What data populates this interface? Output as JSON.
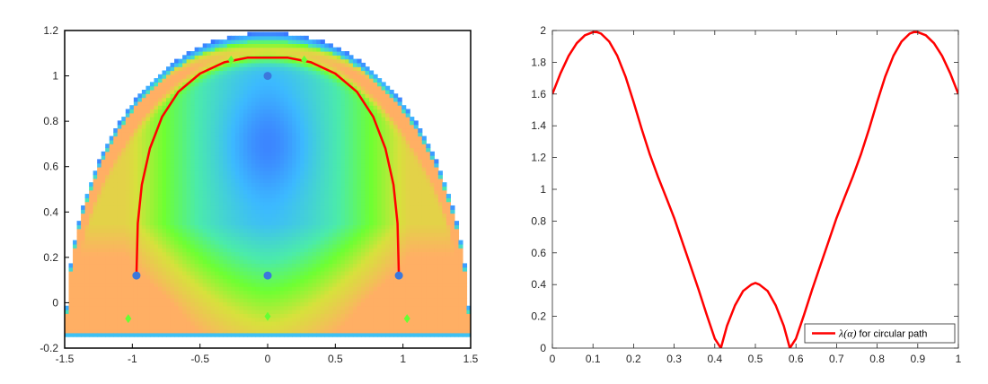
{
  "chart_data": [
    {
      "type": "heatmap",
      "title": "",
      "xlabel": "",
      "ylabel": "",
      "xlim": [
        -1.5,
        1.5
      ],
      "ylim": [
        -0.2,
        1.2
      ],
      "xticks": [
        "-1.5",
        "-1",
        "-0.5",
        "0",
        "0.5",
        "1",
        "1.5"
      ],
      "yticks": [
        "-0.2",
        "0",
        "0.2",
        "0.4",
        "0.6",
        "0.8",
        "1",
        "1.2"
      ],
      "grid": false,
      "colors": {
        "low": "#1e32ff",
        "mid_low": "#3cb4ff",
        "mid": "#66ff33",
        "high": "#ffb464",
        "path": "#ff0000",
        "points": "#3c78dc",
        "diamonds": "#66ff33"
      },
      "path": {
        "type": "line",
        "x": [
          -0.97,
          -0.96,
          -0.93,
          -0.87,
          -0.78,
          -0.66,
          -0.5,
          -0.32,
          -0.15,
          0.0,
          0.15,
          0.32,
          0.5,
          0.66,
          0.78,
          0.87,
          0.93,
          0.96,
          0.97
        ],
        "y": [
          0.12,
          0.35,
          0.52,
          0.68,
          0.82,
          0.93,
          1.01,
          1.06,
          1.08,
          1.08,
          1.08,
          1.06,
          1.01,
          0.93,
          0.82,
          0.68,
          0.52,
          0.35,
          0.12
        ]
      },
      "points": {
        "type": "scatter",
        "x": [
          -0.97,
          0.0,
          0.0,
          0.97
        ],
        "y": [
          0.12,
          0.12,
          1.0,
          0.12
        ]
      },
      "diamonds": {
        "type": "scatter",
        "x": [
          -1.03,
          0.0,
          1.03,
          -0.27,
          0.27
        ],
        "y": [
          -0.07,
          -0.06,
          -0.07,
          1.07,
          1.07
        ]
      }
    },
    {
      "type": "line",
      "title": "",
      "xlabel": "",
      "ylabel": "",
      "xlim": [
        0,
        1
      ],
      "ylim": [
        0,
        2
      ],
      "xticks": [
        "0",
        "0.1",
        "0.2",
        "0.3",
        "0.4",
        "0.5",
        "0.6",
        "0.7",
        "0.8",
        "0.9",
        "1"
      ],
      "yticks": [
        "0",
        "0.2",
        "0.4",
        "0.6",
        "0.8",
        "1",
        "1.2",
        "1.4",
        "1.6",
        "1.8",
        "2"
      ],
      "grid": false,
      "legend": {
        "location": "bottom-right",
        "label_prefix": "λ(α)",
        "label_suffix": " for circular path"
      },
      "series": [
        {
          "color": "#ff0000",
          "x": [
            0,
            0.02,
            0.04,
            0.06,
            0.08,
            0.1,
            0.11,
            0.12,
            0.14,
            0.16,
            0.18,
            0.2,
            0.22,
            0.24,
            0.26,
            0.28,
            0.3,
            0.32,
            0.34,
            0.36,
            0.38,
            0.4,
            0.415,
            0.43,
            0.45,
            0.47,
            0.49,
            0.5,
            0.51,
            0.53,
            0.55,
            0.57,
            0.585,
            0.6,
            0.62,
            0.64,
            0.66,
            0.68,
            0.7,
            0.72,
            0.74,
            0.76,
            0.78,
            0.8,
            0.82,
            0.84,
            0.86,
            0.88,
            0.89,
            0.9,
            0.92,
            0.94,
            0.96,
            0.98,
            1.0
          ],
          "y": [
            1.6,
            1.73,
            1.84,
            1.92,
            1.97,
            1.99,
            1.99,
            1.98,
            1.93,
            1.84,
            1.71,
            1.55,
            1.38,
            1.22,
            1.08,
            0.95,
            0.82,
            0.67,
            0.52,
            0.37,
            0.21,
            0.06,
            0.0,
            0.14,
            0.27,
            0.36,
            0.4,
            0.41,
            0.4,
            0.36,
            0.27,
            0.14,
            0.0,
            0.06,
            0.21,
            0.37,
            0.52,
            0.67,
            0.82,
            0.95,
            1.08,
            1.22,
            1.38,
            1.55,
            1.71,
            1.84,
            1.93,
            1.98,
            1.99,
            1.99,
            1.97,
            1.92,
            1.84,
            1.73,
            1.6
          ]
        }
      ]
    }
  ]
}
